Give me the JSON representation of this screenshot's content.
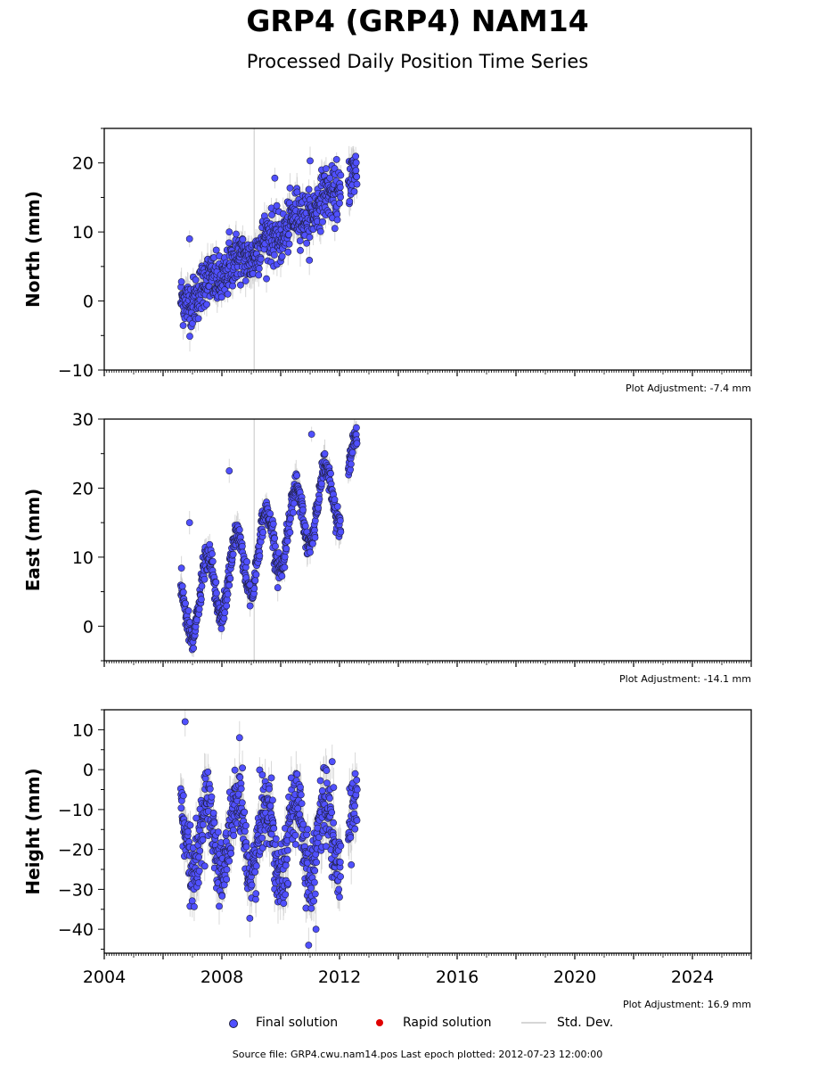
{
  "title": "GRP4 (GRP4) NAM14",
  "subtitle": "Processed Daily Position Time Series",
  "legend": {
    "final": "Final solution",
    "rapid": "Rapid solution",
    "std": "Std. Dev."
  },
  "footer": "Source file: GRP4.cwu.nam14.pos  Last epoch plotted: 2012-07-23 12:00:00",
  "colors": {
    "final": "#5050ff",
    "rapid": "#e00000",
    "std": "#c8c8c8",
    "marker_edge": "#202040",
    "vline": "#d8d8d8"
  },
  "chart_data": [
    {
      "type": "scatter",
      "ylabel": "North (mm)",
      "xlim": [
        2004.0,
        2026.0
      ],
      "ylim": [
        -10,
        25
      ],
      "yticks": [
        -10,
        0,
        10,
        20
      ],
      "yticklabels": [
        "−10",
        "0",
        "10",
        "20"
      ],
      "xticks": [
        2004,
        2008,
        2012,
        2016,
        2020,
        2024
      ],
      "show_xticklabels": false,
      "adjustment": "Plot Adjustment: -7.4 mm",
      "vline_x": 2009.1,
      "trend": {
        "start": 2006.6,
        "end": 2012.6,
        "y0": -0.5,
        "y1": 18.0
      },
      "seasonal_amplitude": 1.0,
      "noise": 1.8,
      "std_halfwidth": 1.6,
      "gap": [
        2012.05,
        2012.3
      ],
      "outliers": [
        [
          2006.9,
          9.0
        ],
        [
          2008.25,
          10.0
        ],
        [
          2009.8,
          17.8
        ],
        [
          2011.0,
          20.3
        ],
        [
          2011.9,
          20.5
        ]
      ]
    },
    {
      "type": "scatter",
      "ylabel": "East (mm)",
      "xlim": [
        2004.0,
        2026.0
      ],
      "ylim": [
        -5,
        30
      ],
      "yticks": [
        0,
        10,
        20,
        30
      ],
      "yticklabels": [
        "0",
        "10",
        "20",
        "30"
      ],
      "xticks": [
        2004,
        2008,
        2012,
        2016,
        2020,
        2024
      ],
      "show_xticklabels": false,
      "adjustment": "Plot Adjustment: -14.1 mm",
      "vline_x": 2009.1,
      "trend": {
        "start": 2006.6,
        "end": 2012.6,
        "y0": 2.0,
        "y1": 22.0
      },
      "seasonal_amplitude": 5.0,
      "noise": 1.0,
      "std_halfwidth": 1.4,
      "gap": [
        2012.05,
        2012.3
      ],
      "outliers": [
        [
          2008.25,
          22.5
        ],
        [
          2008.95,
          6.0
        ],
        [
          2011.05,
          27.8
        ],
        [
          2006.9,
          15.0
        ]
      ]
    },
    {
      "type": "scatter",
      "ylabel": "Height (mm)",
      "xlim": [
        2004.0,
        2026.0
      ],
      "ylim": [
        -46,
        15
      ],
      "yticks": [
        -40,
        -30,
        -20,
        -10,
        0,
        10
      ],
      "yticklabels": [
        "−40",
        "−30",
        "−20",
        "−10",
        "0",
        "10"
      ],
      "xticks": [
        2004,
        2008,
        2012,
        2016,
        2020,
        2024
      ],
      "xticklabels": [
        "2004",
        "2008",
        "2012",
        "2016",
        "2020",
        "2024"
      ],
      "show_xticklabels": true,
      "adjustment": "Plot Adjustment: 16.9 mm",
      "trend": {
        "start": 2006.6,
        "end": 2012.6,
        "y0": -17.0,
        "y1": -17.0
      },
      "seasonal_amplitude": 9.0,
      "noise": 4.5,
      "std_halfwidth": 4.0,
      "gap": [
        2012.05,
        2012.3
      ],
      "outliers": [
        [
          2006.75,
          12.0
        ],
        [
          2008.6,
          8.0
        ],
        [
          2010.95,
          -44.0
        ],
        [
          2011.2,
          -40.0
        ],
        [
          2011.75,
          2.0
        ],
        [
          2012.6,
          -5.0
        ]
      ]
    }
  ]
}
